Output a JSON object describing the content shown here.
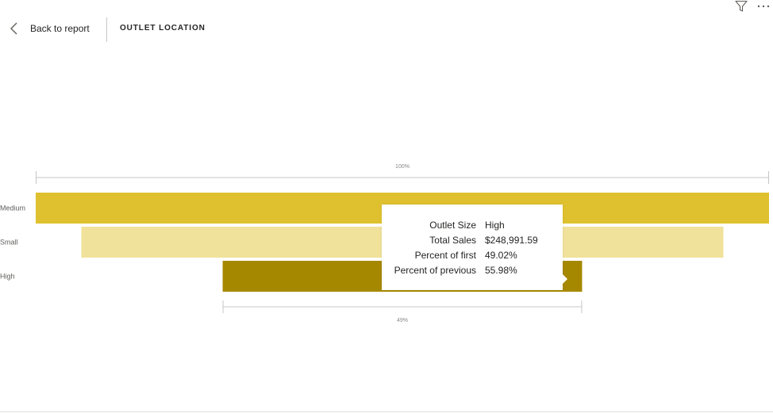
{
  "header": {
    "back_label": "Back to report",
    "title": "OUTLET LOCATION",
    "icons": {
      "back": "chevron-left-icon",
      "filter": "filter-icon",
      "more": "more-options-icon"
    }
  },
  "chart_data": {
    "type": "funnel",
    "categories": [
      "Medium",
      "Small",
      "High"
    ],
    "values": [
      508000,
      444800,
      248991.59
    ],
    "percent_of_first": [
      100,
      87.56,
      49.02
    ],
    "colors": [
      "#dfc12f",
      "#f0e19b",
      "#a68800"
    ],
    "top_label": "100%",
    "bottom_label": "49%"
  },
  "tooltip": {
    "rows": [
      {
        "key": "Outlet Size",
        "value": "High"
      },
      {
        "key": "Total Sales",
        "value": "$248,991.59"
      },
      {
        "key": "Percent of first",
        "value": "49.02%"
      },
      {
        "key": "Percent of previous",
        "value": "55.98%"
      }
    ]
  }
}
